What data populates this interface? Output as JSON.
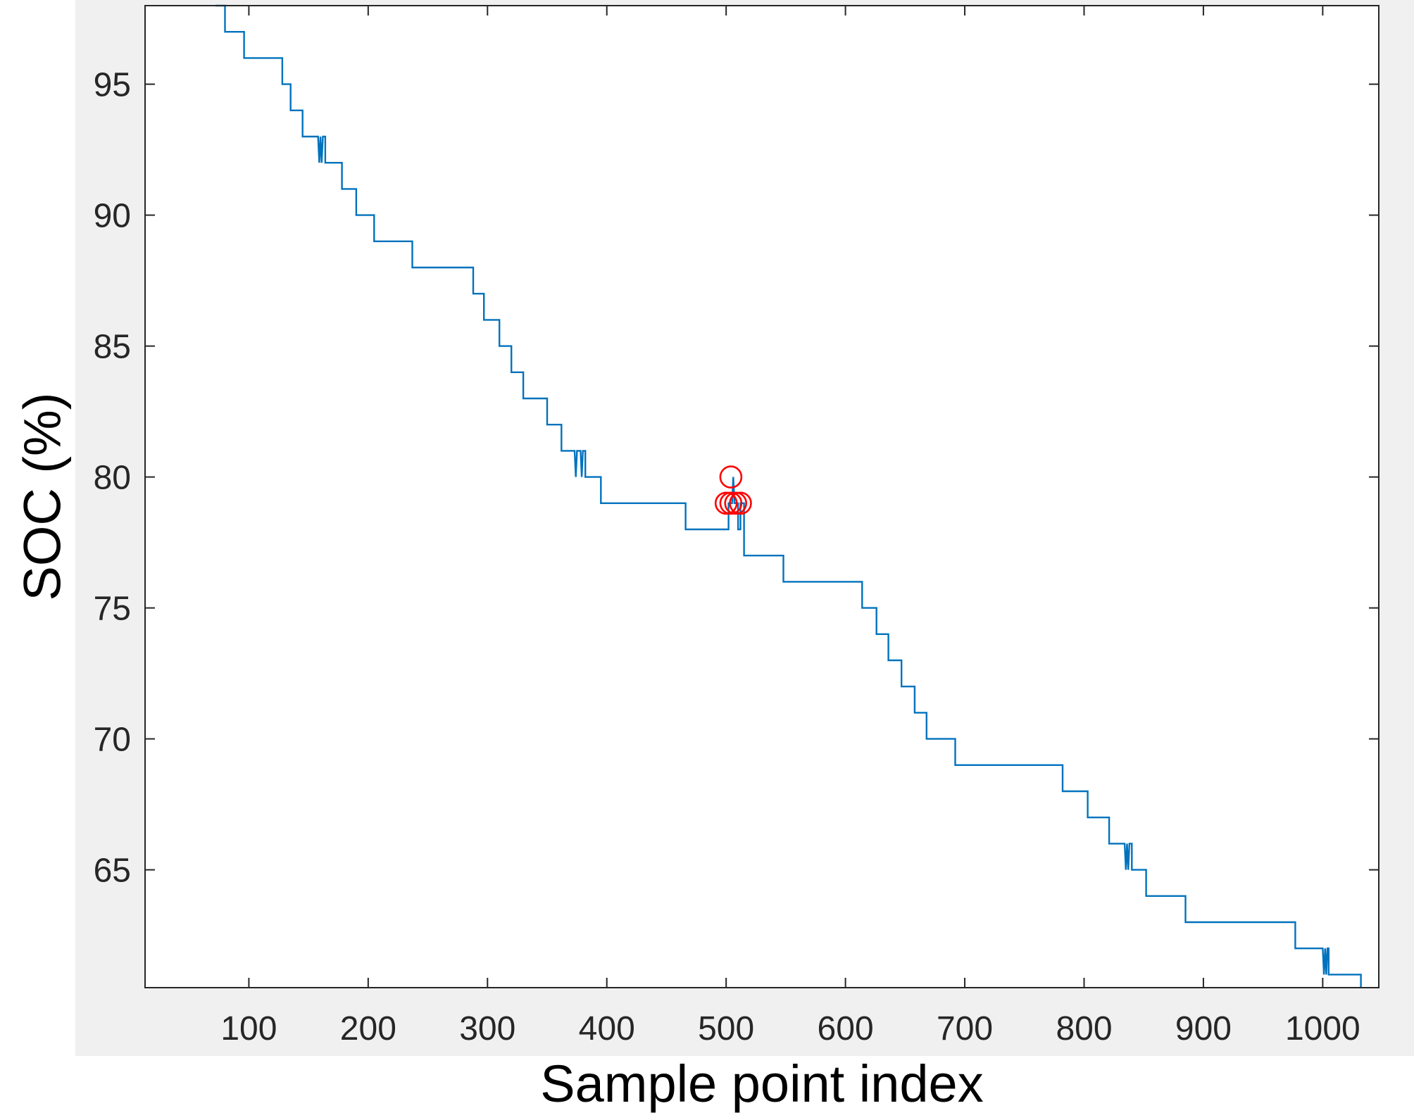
{
  "chart_data": {
    "type": "line",
    "xlabel": "Sample point index",
    "ylabel": "SOC (%)",
    "xlim": [
      13,
      1047
    ],
    "ylim": [
      60.5,
      98
    ],
    "xticks": [
      100,
      200,
      300,
      400,
      500,
      600,
      700,
      800,
      900,
      1000
    ],
    "yticks": [
      65,
      70,
      75,
      80,
      85,
      90,
      95
    ],
    "grid": false,
    "colors": {
      "figure_bg": "#f0f0f0",
      "axes_bg": "#ffffff",
      "axes_edge": "#262626",
      "tick_label": "#262626",
      "series": "#0072bd",
      "markers": "#ff0000"
    },
    "series": [
      {
        "type": "step-line",
        "points": [
          [
            72,
            98
          ],
          [
            80,
            98
          ],
          [
            80,
            97
          ],
          [
            96,
            97
          ],
          [
            96,
            96
          ],
          [
            128,
            96
          ],
          [
            128,
            95
          ],
          [
            135,
            95
          ],
          [
            135,
            94
          ],
          [
            145,
            94
          ],
          [
            145,
            93
          ],
          [
            158,
            93
          ],
          [
            159,
            92
          ],
          [
            160,
            93
          ],
          [
            161,
            92
          ],
          [
            162,
            93
          ],
          [
            164,
            93
          ],
          [
            164,
            92
          ],
          [
            178,
            92
          ],
          [
            178,
            91
          ],
          [
            190,
            91
          ],
          [
            190,
            90
          ],
          [
            205,
            90
          ],
          [
            205,
            89
          ],
          [
            237,
            89
          ],
          [
            237,
            88
          ],
          [
            288,
            88
          ],
          [
            288,
            87
          ],
          [
            297,
            87
          ],
          [
            297,
            86
          ],
          [
            310,
            86
          ],
          [
            310,
            85
          ],
          [
            320,
            85
          ],
          [
            320,
            84
          ],
          [
            330,
            84
          ],
          [
            330,
            83
          ],
          [
            350,
            83
          ],
          [
            350,
            82
          ],
          [
            362,
            82
          ],
          [
            362,
            81
          ],
          [
            373,
            81
          ],
          [
            374,
            80
          ],
          [
            375,
            81
          ],
          [
            378,
            81
          ],
          [
            379,
            80
          ],
          [
            380,
            81
          ],
          [
            382,
            81
          ],
          [
            382,
            80
          ],
          [
            395,
            80
          ],
          [
            395,
            79
          ],
          [
            466,
            79
          ],
          [
            466,
            78
          ],
          [
            502,
            78
          ],
          [
            502,
            79
          ],
          [
            505,
            79
          ],
          [
            506,
            80
          ],
          [
            507,
            79
          ],
          [
            510,
            79
          ],
          [
            510,
            78
          ],
          [
            512,
            78
          ],
          [
            512,
            79
          ],
          [
            515,
            79
          ],
          [
            515,
            77
          ],
          [
            548,
            77
          ],
          [
            548,
            76
          ],
          [
            614,
            76
          ],
          [
            614,
            75
          ],
          [
            626,
            75
          ],
          [
            626,
            74
          ],
          [
            636,
            74
          ],
          [
            636,
            73
          ],
          [
            647,
            73
          ],
          [
            647,
            72
          ],
          [
            658,
            72
          ],
          [
            658,
            71
          ],
          [
            668,
            71
          ],
          [
            668,
            70
          ],
          [
            692,
            70
          ],
          [
            692,
            69
          ],
          [
            782,
            69
          ],
          [
            782,
            68
          ],
          [
            803,
            68
          ],
          [
            803,
            67
          ],
          [
            821,
            67
          ],
          [
            821,
            66
          ],
          [
            834,
            66
          ],
          [
            835,
            65
          ],
          [
            836,
            66
          ],
          [
            837,
            65
          ],
          [
            838,
            66
          ],
          [
            840,
            66
          ],
          [
            840,
            65
          ],
          [
            852,
            65
          ],
          [
            852,
            64
          ],
          [
            885,
            64
          ],
          [
            885,
            63
          ],
          [
            977,
            63
          ],
          [
            977,
            62
          ],
          [
            1000,
            62
          ],
          [
            1001,
            61
          ],
          [
            1002,
            62
          ],
          [
            1003,
            61
          ],
          [
            1004,
            62
          ],
          [
            1005,
            62
          ],
          [
            1005,
            61
          ],
          [
            1032,
            61
          ],
          [
            1032,
            60.5
          ]
        ]
      },
      {
        "type": "markers",
        "marker": "circle",
        "points": [
          [
            504,
            80
          ],
          [
            500,
            79
          ],
          [
            504,
            79
          ],
          [
            508,
            79
          ],
          [
            512,
            79
          ]
        ]
      }
    ]
  }
}
